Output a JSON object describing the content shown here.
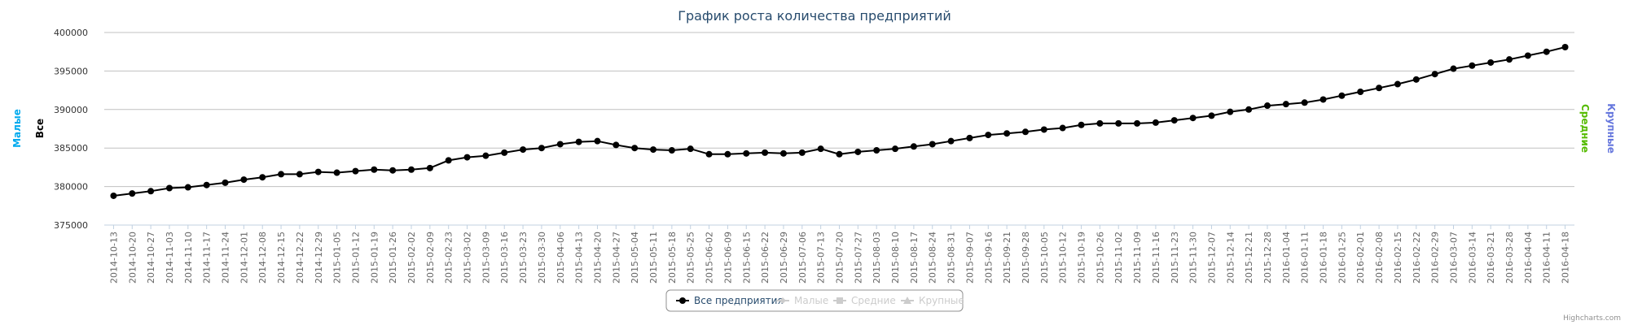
{
  "chart_data": {
    "type": "line",
    "title": "График роста количества предприятий",
    "y_axes": [
      {
        "title": "Малые",
        "color": "#00aaee",
        "side": "left"
      },
      {
        "title": "Все",
        "color": "#000000",
        "side": "left"
      },
      {
        "title": "Средние",
        "color": "#55bb00",
        "side": "right"
      },
      {
        "title": "Крупные",
        "color": "#6677dd",
        "side": "right"
      }
    ],
    "ylim": [
      375000,
      400000
    ],
    "yticks": [
      "375000",
      "380000",
      "385000",
      "390000",
      "395000",
      "400000"
    ],
    "grid": true,
    "legend_placement": "bottom-center",
    "legend": [
      {
        "name": "Все предприятия",
        "active": true,
        "marker": "circle",
        "color": "#000000"
      },
      {
        "name": "Малые",
        "active": false,
        "marker": "diamond",
        "color": "#cccccc"
      },
      {
        "name": "Средние",
        "active": false,
        "marker": "square",
        "color": "#cccccc"
      },
      {
        "name": "Крупные",
        "active": false,
        "marker": "triangle",
        "color": "#cccccc"
      }
    ],
    "x": [
      "2014-10-13",
      "2014-10-20",
      "2014-10-27",
      "2014-11-03",
      "2014-11-10",
      "2014-11-17",
      "2014-11-24",
      "2014-12-01",
      "2014-12-08",
      "2014-12-15",
      "2014-12-22",
      "2014-12-29",
      "2015-01-05",
      "2015-01-12",
      "2015-01-19",
      "2015-01-26",
      "2015-02-02",
      "2015-02-09",
      "2015-02-23",
      "2015-03-02",
      "2015-03-09",
      "2015-03-16",
      "2015-03-23",
      "2015-03-30",
      "2015-04-06",
      "2015-04-13",
      "2015-04-20",
      "2015-04-27",
      "2015-05-04",
      "2015-05-11",
      "2015-05-18",
      "2015-05-25",
      "2015-06-02",
      "2015-06-09",
      "2015-06-15",
      "2015-06-22",
      "2015-06-29",
      "2015-07-06",
      "2015-07-13",
      "2015-07-20",
      "2015-07-27",
      "2015-08-03",
      "2015-08-10",
      "2015-08-17",
      "2015-08-24",
      "2015-08-31",
      "2015-09-07",
      "2015-09-16",
      "2015-09-21",
      "2015-09-28",
      "2015-10-05",
      "2015-10-12",
      "2015-10-19",
      "2015-10-26",
      "2015-11-02",
      "2015-11-09",
      "2015-11-16",
      "2015-11-23",
      "2015-11-30",
      "2015-12-07",
      "2015-12-14",
      "2015-12-21",
      "2015-12-28",
      "2016-01-04",
      "2016-01-11",
      "2016-01-18",
      "2016-01-25",
      "2016-02-01",
      "2016-02-08",
      "2016-02-15",
      "2016-02-22",
      "2016-02-29",
      "2016-03-07",
      "2016-03-14",
      "2016-03-21",
      "2016-03-28",
      "2016-04-04",
      "2016-04-11",
      "2016-04-18"
    ],
    "series": [
      {
        "name": "Все предприятия",
        "color": "#000000",
        "values": [
          378800,
          379100,
          379400,
          379800,
          379900,
          380200,
          380500,
          380900,
          381200,
          381600,
          381600,
          381900,
          381800,
          382000,
          382200,
          382100,
          382200,
          382400,
          383400,
          383800,
          384000,
          384400,
          384800,
          385000,
          385500,
          385800,
          385900,
          385400,
          385000,
          384800,
          384700,
          384900,
          384200,
          384200,
          384300,
          384400,
          384300,
          384400,
          384900,
          384200,
          384500,
          384700,
          384900,
          385200,
          385500,
          385900,
          386300,
          386700,
          386900,
          387100,
          387400,
          387600,
          388000,
          388200,
          388200,
          388200,
          388300,
          388600,
          388900,
          389200,
          389700,
          390000,
          390500,
          390700,
          390900,
          391300,
          391800,
          392300,
          392800,
          393300,
          393900,
          394600,
          395300,
          395700,
          396100,
          396500,
          397000,
          397500,
          398100
        ]
      }
    ],
    "credits": "Highcharts.com"
  }
}
